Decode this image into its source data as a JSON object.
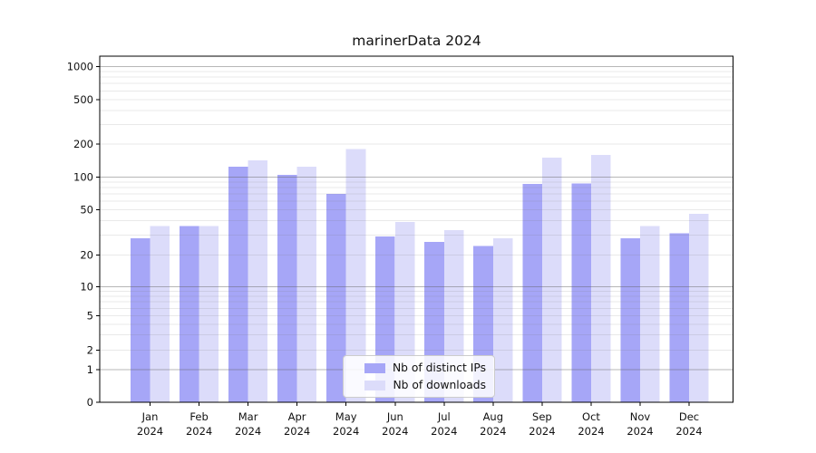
{
  "title": "marinerData 2024",
  "chart_data": {
    "type": "bar",
    "title": "marinerData 2024",
    "categories": [
      "Jan",
      "Feb",
      "Mar",
      "Apr",
      "May",
      "Jun",
      "Jul",
      "Aug",
      "Sep",
      "Oct",
      "Nov",
      "Dec"
    ],
    "category_year": "2024",
    "series": [
      {
        "name": "Nb of distinct IPs",
        "color": "#a6a6f7",
        "values": [
          28,
          36,
          125,
          105,
          70,
          29,
          26,
          24,
          87,
          88,
          28,
          31
        ]
      },
      {
        "name": "Nb of downloads",
        "color": "#dcdcfa",
        "values": [
          36,
          36,
          142,
          125,
          180,
          39,
          33,
          28,
          150,
          160,
          36,
          46
        ]
      }
    ],
    "xlabel": "",
    "ylabel": "",
    "yscale": "symlog",
    "yticks": [
      0,
      1,
      2,
      5,
      10,
      20,
      50,
      100,
      200,
      500,
      1000
    ],
    "ylim": [
      0,
      1200
    ],
    "grid": true,
    "major_grid_values": [
      1,
      10,
      100,
      1000
    ],
    "legend_position": "lower-center-inside",
    "colors": {
      "axis": "#000000",
      "major_grid": "#c3c3c3",
      "minor_grid": "#ebebeb",
      "text": "#111111"
    }
  },
  "legend": {
    "items": [
      {
        "label": "Nb of distinct IPs",
        "color": "#a6a6f7"
      },
      {
        "label": "Nb of downloads",
        "color": "#dcdcfa"
      }
    ]
  }
}
